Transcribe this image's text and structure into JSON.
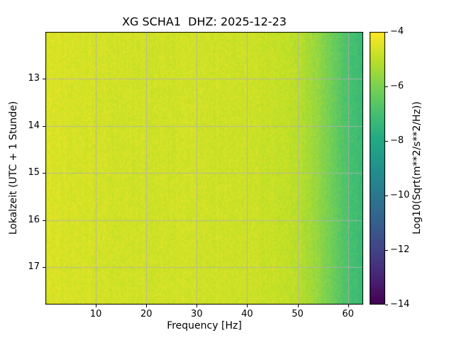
{
  "chart_data": {
    "type": "heatmap",
    "title": "XG SCHA1  DHZ: 2025-12-23",
    "xlabel": "Frequency [Hz]",
    "ylabel": "Lokalzeit (UTC + 1 Stunde)",
    "xlim": [
      0,
      63
    ],
    "ylim": [
      12.0,
      17.8
    ],
    "xticks": [
      10,
      20,
      30,
      40,
      50,
      60
    ],
    "yticks": [
      13,
      14,
      15,
      16,
      17
    ],
    "grid": true,
    "grid_color": "#b0b0b0",
    "colormap": "viridis",
    "colorbar": {
      "label": "Log10(Sqrt(m**2/s**2/Hz))",
      "ticks": [
        -4,
        -6,
        -8,
        -10,
        -12,
        -14
      ],
      "vmin": -14,
      "vmax": -4
    },
    "spectrum_profile": {
      "freqs": [
        0,
        1,
        3,
        10,
        20,
        30,
        35,
        40,
        44,
        47,
        50,
        52,
        54,
        56,
        58,
        60,
        61.5,
        63
      ],
      "values": [
        -4.6,
        -4.5,
        -4.6,
        -4.65,
        -4.7,
        -4.7,
        -4.75,
        -4.75,
        -4.85,
        -4.9,
        -5.05,
        -5.3,
        -5.6,
        -6.0,
        -6.5,
        -6.9,
        -7.1,
        -7.2
      ]
    },
    "noise_std": 0.17
  }
}
